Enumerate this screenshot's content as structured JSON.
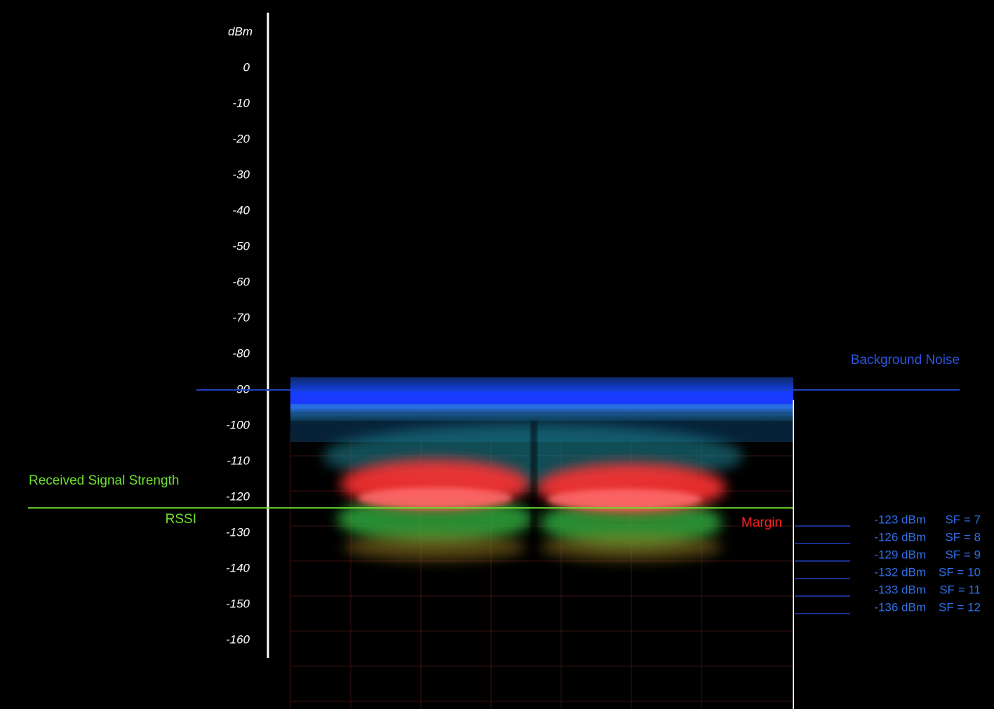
{
  "axis": {
    "unit": "dBm",
    "ticks": [
      0,
      -10,
      -20,
      -30,
      -40,
      -50,
      -60,
      -70,
      -80,
      -90,
      -100,
      -110,
      -120,
      -130,
      -140,
      -150,
      -160
    ]
  },
  "background_noise": {
    "label": "Background  Noise",
    "level": -90
  },
  "rssi": {
    "label": "Received Signal Strength",
    "abbr": "RSSI",
    "level": -123
  },
  "margin": {
    "label": "Margin"
  },
  "sensitivity": [
    {
      "dbm": "-123 dBm",
      "sf": "SF = 7"
    },
    {
      "dbm": "-126 dBm",
      "sf": "SF = 8"
    },
    {
      "dbm": "-129 dBm",
      "sf": "SF = 9"
    },
    {
      "dbm": "-132 dBm",
      "sf": "SF = 10"
    },
    {
      "dbm": "-133 dBm",
      "sf": "SF = 11"
    },
    {
      "dbm": "-136 dBm",
      "sf": "SF = 12"
    }
  ]
}
